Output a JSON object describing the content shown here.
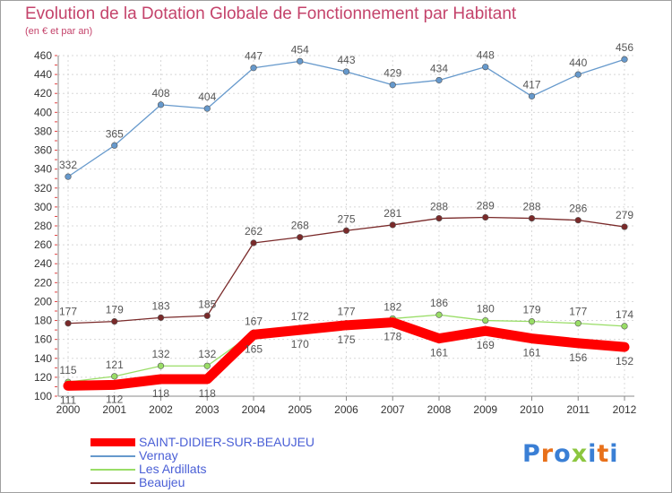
{
  "chart_data": {
    "type": "line",
    "title": "Evolution de la Dotation Globale de Fonctionnement par Habitant",
    "subtitle": "(en € et par an)",
    "xlabel": "",
    "ylabel": "",
    "ylim": [
      100,
      460
    ],
    "yticks": [
      100,
      120,
      140,
      160,
      180,
      200,
      220,
      240,
      260,
      280,
      300,
      320,
      340,
      360,
      380,
      400,
      420,
      440,
      460
    ],
    "grid": true,
    "legend_position": "bottom-left",
    "categories": [
      "2000",
      "2001",
      "2002",
      "2003",
      "2004",
      "2005",
      "2006",
      "2007",
      "2008",
      "2009",
      "2010",
      "2011",
      "2012"
    ],
    "series": [
      {
        "name": "SAINT-DIDIER-SUR-BEAUJEU",
        "color": "#ff0000",
        "values": [
          111,
          112,
          118,
          118,
          165,
          170,
          175,
          178,
          161,
          169,
          161,
          156,
          152
        ]
      },
      {
        "name": "Vernay",
        "color": "#6699cc",
        "values": [
          332,
          365,
          408,
          404,
          447,
          454,
          443,
          429,
          434,
          448,
          417,
          440,
          456
        ]
      },
      {
        "name": "Les Ardillats",
        "color": "#99dd66",
        "values": [
          115,
          121,
          132,
          132,
          167,
          172,
          177,
          182,
          186,
          180,
          179,
          177,
          174
        ]
      },
      {
        "name": "Beaujeu",
        "color": "#7a2a2a",
        "values": [
          177,
          179,
          183,
          185,
          262,
          268,
          275,
          281,
          288,
          289,
          288,
          286,
          279
        ]
      }
    ]
  },
  "logo": {
    "text": "Proxiti",
    "letter_colors": [
      "#3a7fd5",
      "#e8701a",
      "#3a7fd5",
      "#8cc63f",
      "#3a7fd5",
      "#e8701a",
      "#3a7fd5"
    ]
  }
}
